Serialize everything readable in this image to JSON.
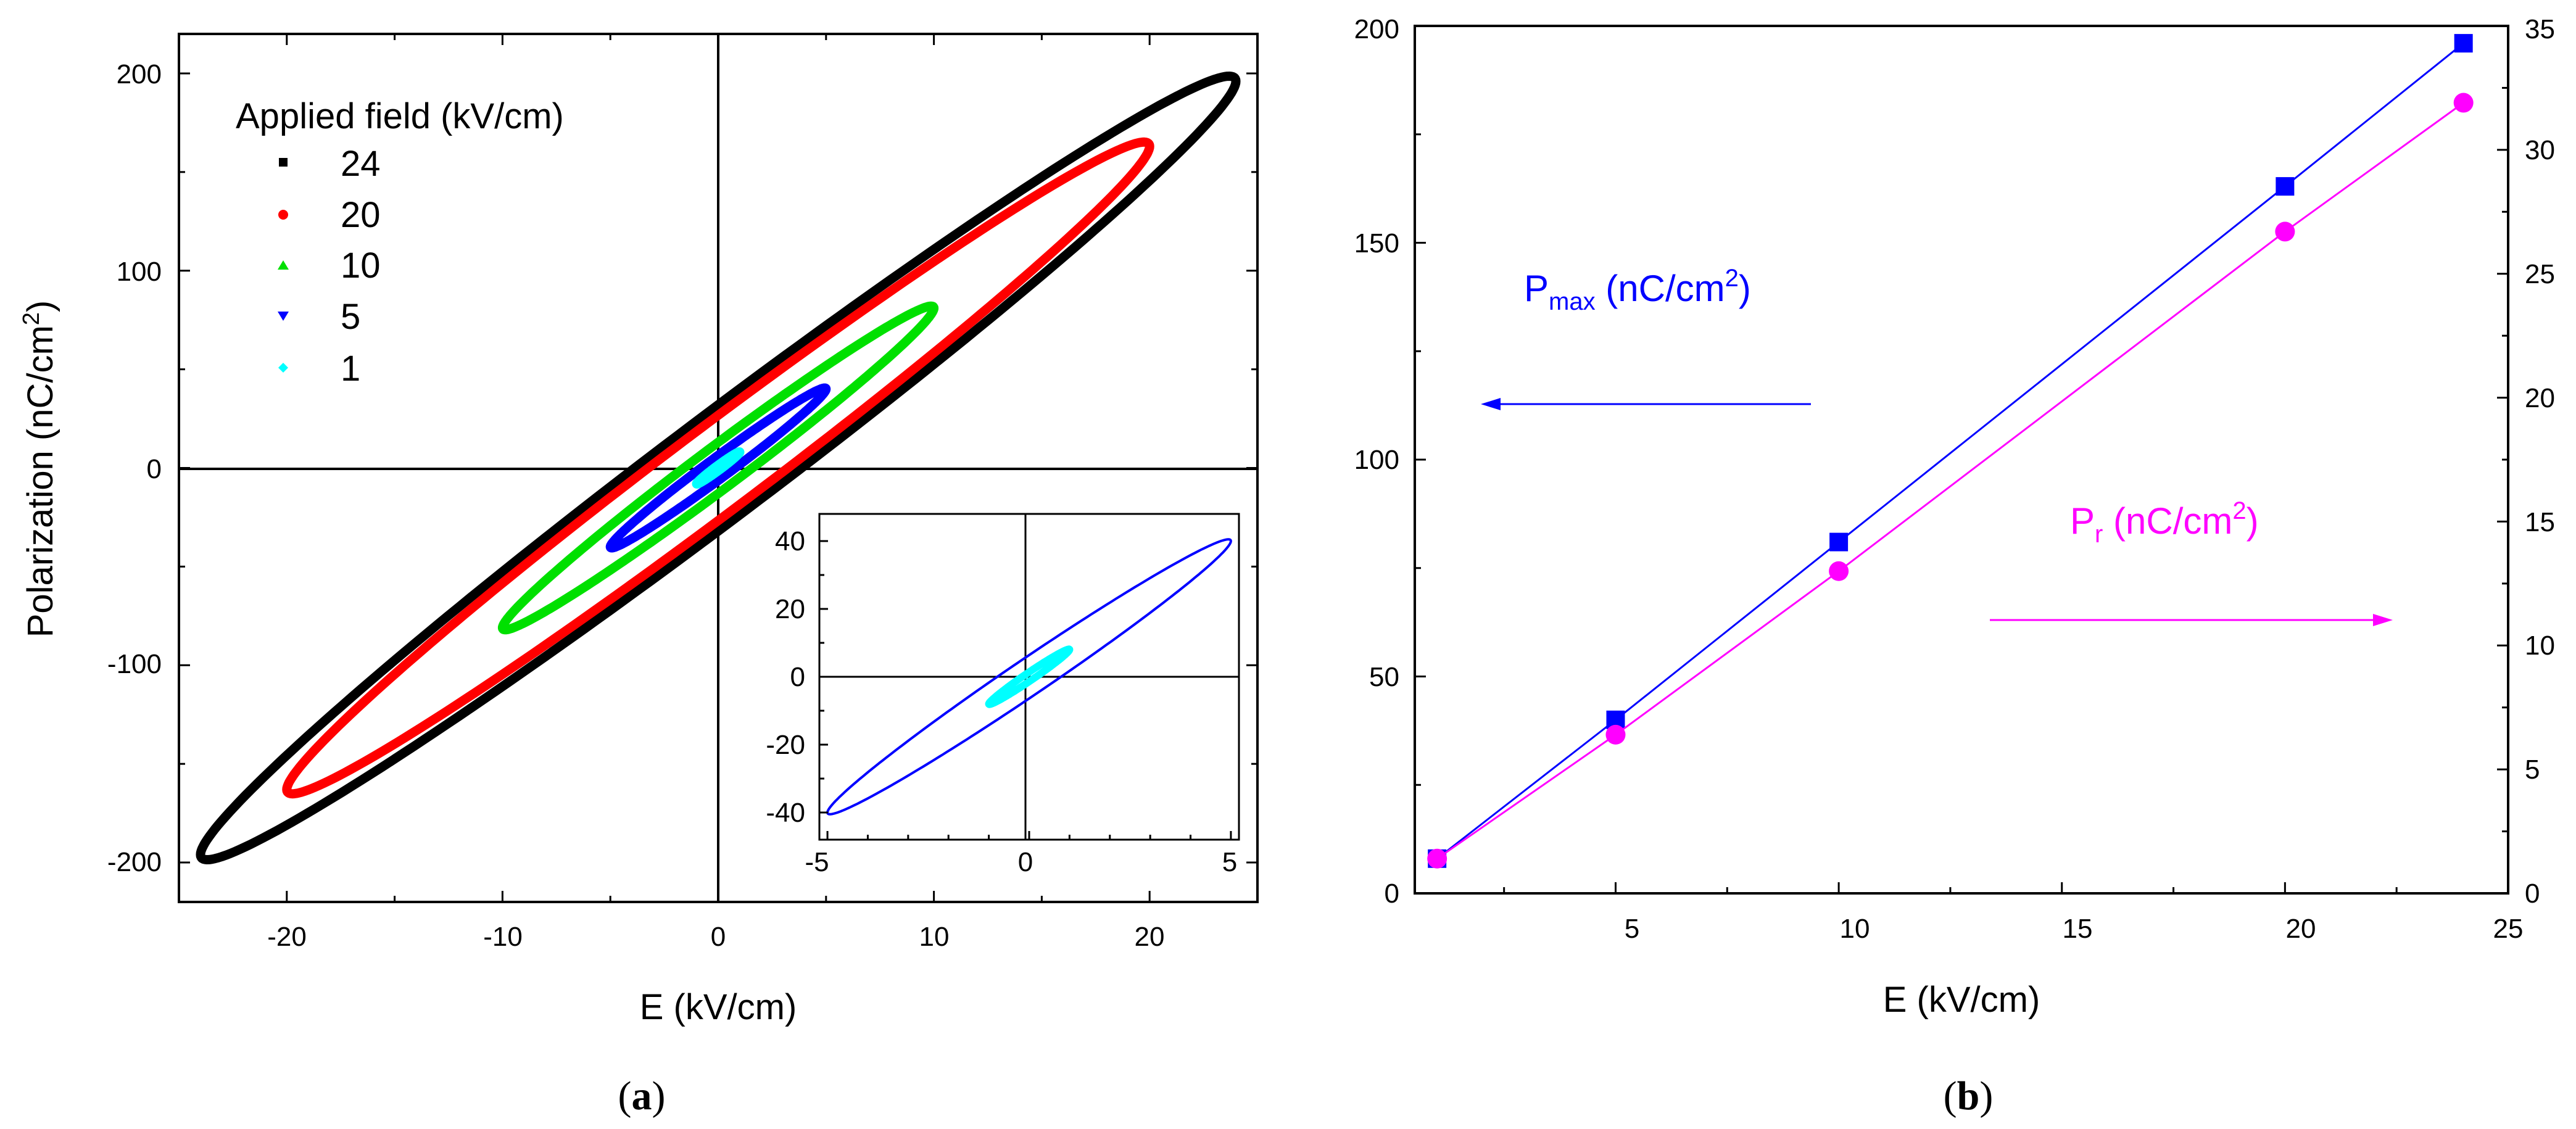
{
  "chart_data": [
    {
      "panel": "a",
      "type": "line",
      "panel_label": {
        "open": "(",
        "letter": "a",
        "close": ")"
      },
      "xlabel": "E (kV/cm)",
      "ylabel": {
        "main": "Polarization (nC/cm",
        "sup": "2",
        "close": ")"
      },
      "xlim": [
        -25,
        25
      ],
      "ylim": [
        -220,
        220
      ],
      "xticks": [
        "-20",
        "-10",
        "0",
        "10",
        "20"
      ],
      "yticks": [
        "-200",
        "-100",
        "0",
        "100",
        "200"
      ],
      "legend_title": "Applied field (kV/cm)",
      "legend_position": "top-left",
      "series": [
        {
          "name": "24",
          "emax": 24,
          "pmax": 196,
          "pr": 32,
          "color": "#000000",
          "marker": "square"
        },
        {
          "name": "20",
          "emax": 20,
          "pmax": 163,
          "pr": 26.7,
          "color": "#ff0000",
          "marker": "circle"
        },
        {
          "name": "10",
          "emax": 10,
          "pmax": 81,
          "pr": 13,
          "color": "#00e000",
          "marker": "triangle-up"
        },
        {
          "name": "5",
          "emax": 5,
          "pmax": 40,
          "pr": 6.4,
          "color": "#0000ff",
          "marker": "triangle-down"
        },
        {
          "name": "1",
          "emax": 1,
          "pmax": 8,
          "pr": 1.4,
          "color": "#00ffff",
          "marker": "diamond"
        }
      ],
      "inset": {
        "xlim": [
          -5.2,
          5.2
        ],
        "ylim": [
          -48,
          48
        ],
        "xticks": [
          "-5",
          "0",
          "5"
        ],
        "yticks": [
          "-40",
          "-20",
          "0",
          "20",
          "40"
        ],
        "series": [
          {
            "name": "5",
            "emax": 5,
            "pmax": 40,
            "pr": 6.4,
            "color": "#0000ff"
          },
          {
            "name": "1",
            "emax": 1,
            "pmax": 8,
            "pr": 1.4,
            "color": "#00ffff"
          }
        ]
      }
    },
    {
      "panel": "b",
      "type": "line",
      "panel_label": {
        "open": "(",
        "letter": "b",
        "close": ")"
      },
      "xlabel": "E (kV/cm)",
      "xlim": [
        0.5,
        25
      ],
      "ylim_left": [
        0,
        200
      ],
      "ylim_right": [
        0,
        35
      ],
      "xticks": [
        "5",
        "10",
        "15",
        "20",
        "25"
      ],
      "yticks_left": [
        "0",
        "50",
        "100",
        "150",
        "200"
      ],
      "yticks_right": [
        "0",
        "5",
        "10",
        "15",
        "20",
        "25",
        "30",
        "35"
      ],
      "series": [
        {
          "name": "Pmax",
          "axis": "left",
          "color": "#0000ff",
          "marker": "square",
          "x": [
            1,
            5,
            10,
            20,
            24
          ],
          "y": [
            8,
            40,
            81,
            163,
            196
          ]
        },
        {
          "name": "Pr",
          "axis": "right",
          "color": "#ff00ff",
          "marker": "circle",
          "x": [
            1,
            5,
            10,
            20,
            24
          ],
          "y": [
            1.4,
            6.4,
            13,
            26.7,
            31.9
          ]
        }
      ],
      "annotations": {
        "pmax": {
          "main": "P",
          "sub": "max",
          "text": " (nC/cm",
          "sup": "2",
          "close": ")",
          "color": "#0000ff",
          "arrow": "left"
        },
        "pr": {
          "main": "P",
          "sub": "r",
          "text": " (nC/cm",
          "sup": "2",
          "close": ")",
          "color": "#ff00ff",
          "arrow": "right"
        }
      }
    }
  ]
}
